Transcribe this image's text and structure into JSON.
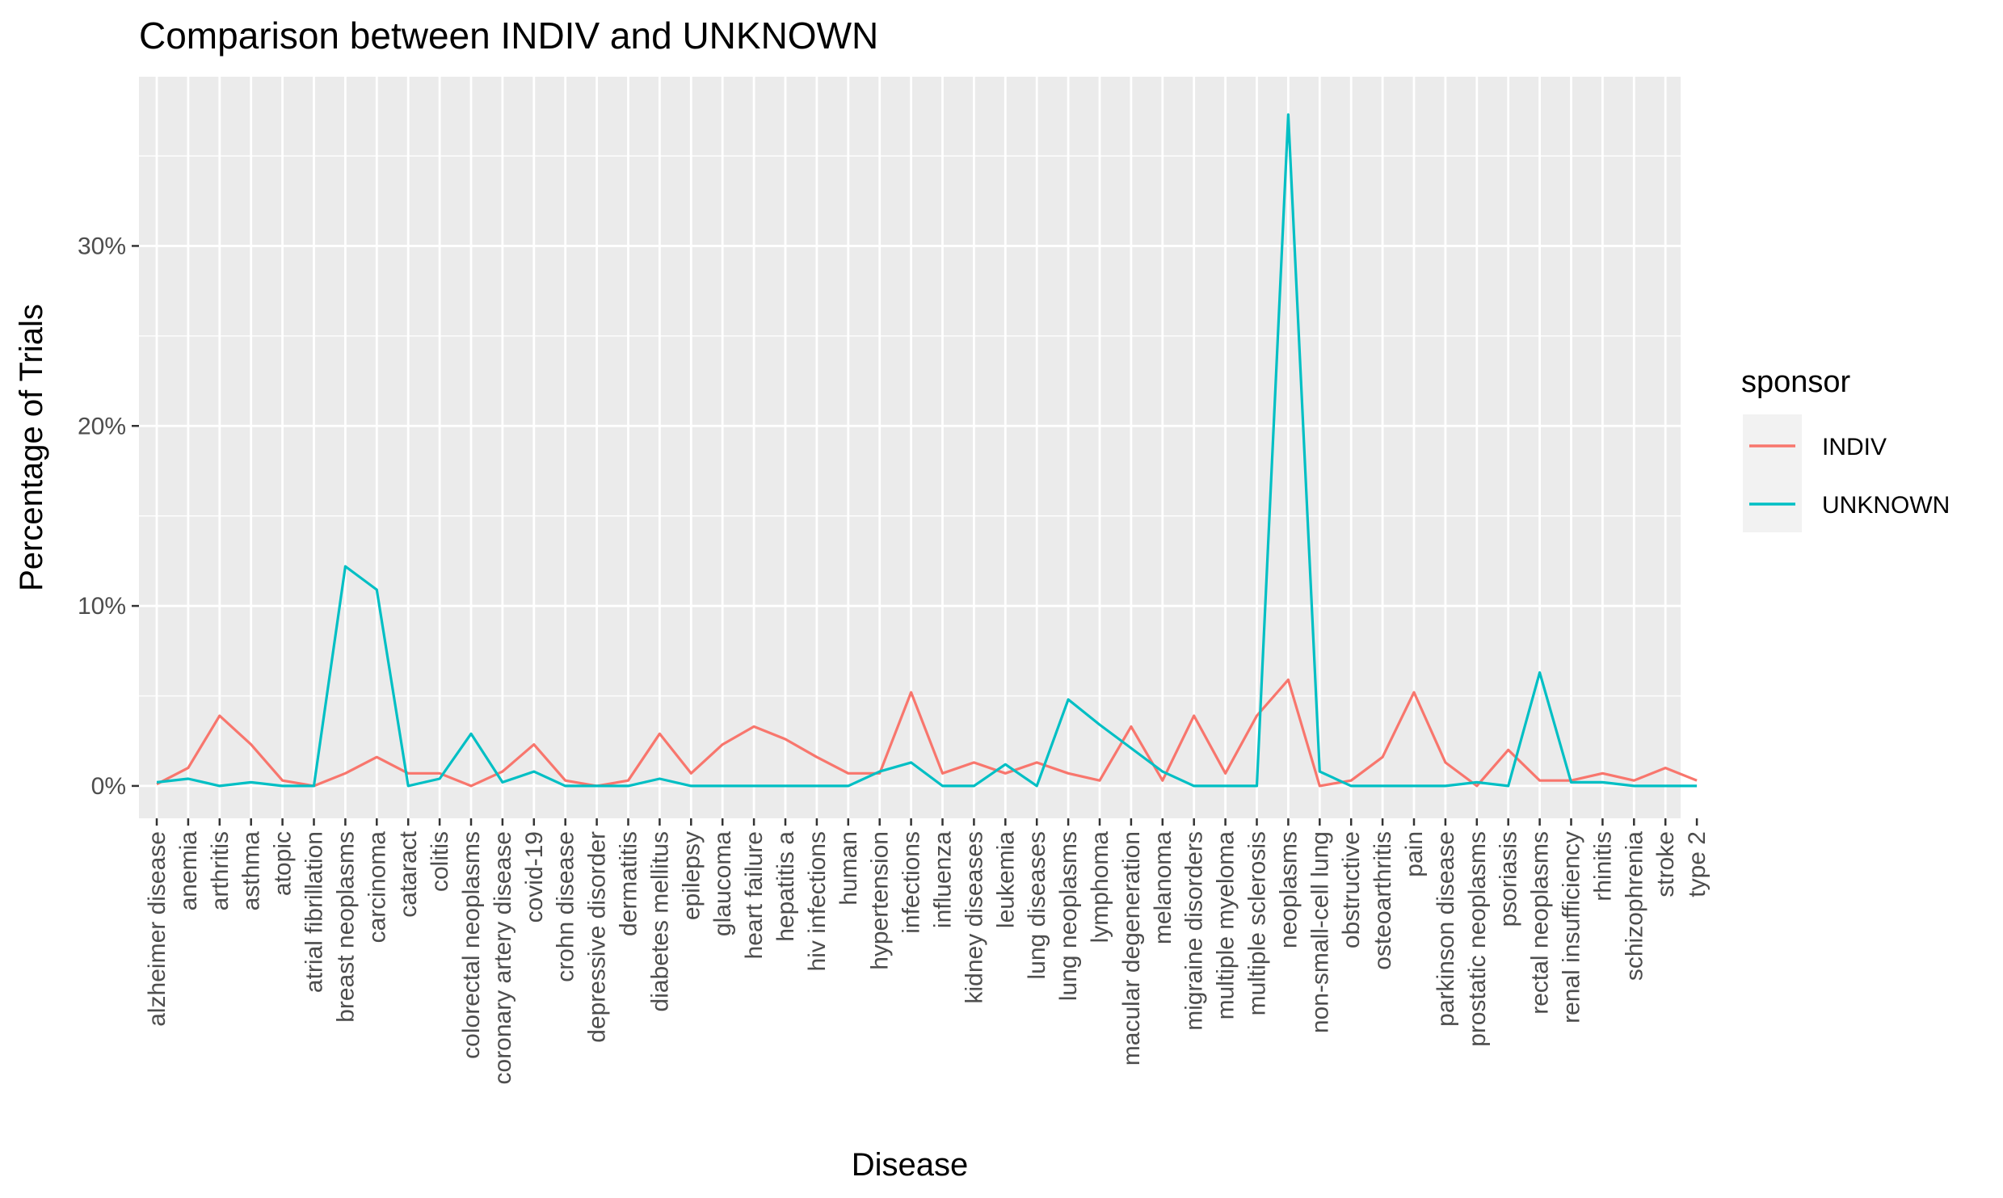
{
  "chart_data": {
    "type": "line",
    "title": "Comparison between INDIV and UNKNOWN",
    "xlabel": "Disease",
    "ylabel": "Percentage of Trials",
    "ylim": [
      -0.018,
      0.394
    ],
    "y_ticks": [
      0,
      0.1,
      0.2,
      0.3
    ],
    "y_tick_labels": [
      "0%",
      "10%",
      "20%",
      "30%"
    ],
    "grid": true,
    "legend": {
      "title": "sponsor",
      "position": "right"
    },
    "categories": [
      "alzheimer disease",
      "anemia",
      "arthritis",
      "asthma",
      "atopic",
      "atrial fibrillation",
      "breast neoplasms",
      "carcinoma",
      "cataract",
      "colitis",
      "colorectal neoplasms",
      "coronary artery disease",
      "covid-19",
      "crohn disease",
      "depressive disorder",
      "dermatitis",
      "diabetes mellitus",
      "epilepsy",
      "glaucoma",
      "heart failure",
      "hepatitis a",
      "hiv infections",
      "human",
      "hypertension",
      "infections",
      "influenza",
      "kidney diseases",
      "leukemia",
      "lung diseases",
      "lung neoplasms",
      "lymphoma",
      "macular degeneration",
      "melanoma",
      "migraine disorders",
      "multiple myeloma",
      "multiple sclerosis",
      "neoplasms",
      "non-small-cell lung",
      "obstructive",
      "osteoarthritis",
      "pain",
      "parkinson disease",
      "prostatic neoplasms",
      "psoriasis",
      "rectal neoplasms",
      "renal insufficiency",
      "rhinitis",
      "schizophrenia",
      "stroke",
      "type 2"
    ],
    "series": [
      {
        "name": "INDIV",
        "color": "#F8766D",
        "values": [
          0.001,
          0.01,
          0.039,
          0.023,
          0.003,
          0.0,
          0.007,
          0.016,
          0.007,
          0.007,
          0.0,
          0.008,
          0.023,
          0.003,
          0.0,
          0.003,
          0.029,
          0.007,
          0.023,
          0.033,
          0.026,
          0.016,
          0.007,
          0.007,
          0.052,
          0.007,
          0.013,
          0.007,
          0.013,
          0.007,
          0.003,
          0.033,
          0.003,
          0.039,
          0.007,
          0.039,
          0.059,
          0.0,
          0.003,
          0.016,
          0.052,
          0.013,
          0.0,
          0.02,
          0.003,
          0.003,
          0.007,
          0.003,
          0.01,
          0.003
        ]
      },
      {
        "name": "UNKNOWN",
        "color": "#00BFC4",
        "values": [
          0.002,
          0.004,
          0.0,
          0.002,
          0.0,
          0.0,
          0.122,
          0.109,
          0.0,
          0.004,
          0.029,
          0.002,
          0.008,
          0.0,
          0.0,
          0.0,
          0.004,
          0.0,
          0.0,
          0.0,
          0.0,
          0.0,
          0.0,
          0.008,
          0.013,
          0.0,
          0.0,
          0.012,
          0.0,
          0.048,
          0.034,
          0.021,
          0.008,
          0.0,
          0.0,
          0.0,
          0.373,
          0.008,
          0.0,
          0.0,
          0.0,
          0.0,
          0.002,
          0.0,
          0.063,
          0.002,
          0.002,
          0.0,
          0.0,
          0.0
        ]
      }
    ]
  }
}
